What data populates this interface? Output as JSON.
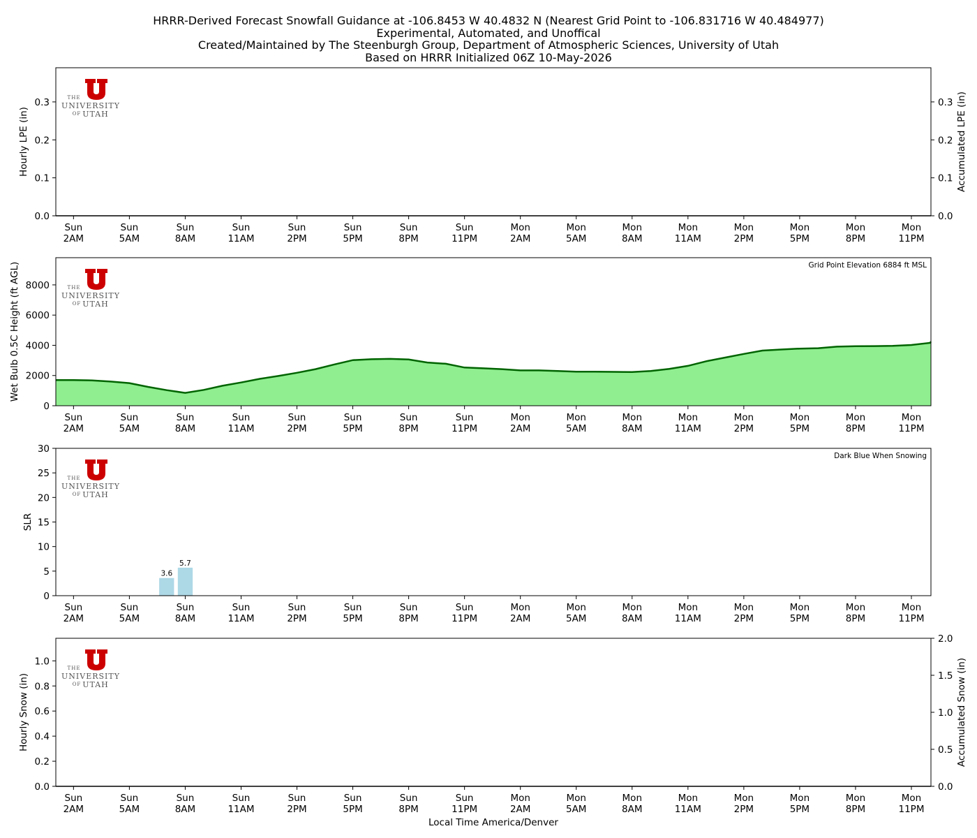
{
  "titles": {
    "line1": "HRRR-Derived Forecast Snowfall Guidance at -106.8453 W 40.4832 N (Nearest Grid Point to -106.831716 W 40.484977)",
    "line2": "Experimental, Automated, and Unoffical",
    "line3": "Created/Maintained by The Steenburgh Group, Department of Atmospheric Sciences, University of Utah",
    "line4": "Based on HRRR Initialized 06Z 10-May-2026"
  },
  "xlabel": "Local Time America/Denver",
  "logo": {
    "the": "THE",
    "university": "UNIVERSITY",
    "of": "OF",
    "utah": "UTAH"
  },
  "colors": {
    "logo_red": "#cc0000",
    "wetbulb_fill": "#90ee90",
    "wetbulb_line": "#006400",
    "slr_bar": "#add8e6"
  },
  "chart_data": [
    {
      "type": "bar",
      "name": "lpe",
      "ylabel": "Hourly LPE (in)",
      "ylabel_right": "Accumulated LPE (in)",
      "ylim": [
        0,
        0.39
      ],
      "yticks": [
        "0.0",
        "0.1",
        "0.2",
        "0.3"
      ],
      "ytick_values": [
        0,
        0.1,
        0.2,
        0.3
      ],
      "ylim_right": [
        0,
        0.39
      ],
      "yticks_right": [
        "0.0",
        "0.1",
        "0.2",
        "0.3"
      ],
      "ytick_values_right": [
        0,
        0.1,
        0.2,
        0.3
      ],
      "x": [],
      "values": []
    },
    {
      "type": "area",
      "name": "wetbulb",
      "ylabel": "Wet Bulb 0.5C Height (ft AGL)",
      "annotation": "Grid Point Elevation 6884 ft MSL",
      "ylim": [
        0,
        9800
      ],
      "yticks": [
        "0",
        "2000",
        "4000",
        "6000",
        "8000"
      ],
      "ytick_values": [
        0,
        2000,
        4000,
        6000,
        8000
      ],
      "x": [
        1,
        2,
        3,
        4,
        5,
        6,
        7,
        8,
        9,
        10,
        11,
        12,
        13,
        14,
        15,
        16,
        17,
        18,
        19,
        20,
        21,
        22,
        23,
        24,
        25,
        26,
        27,
        28,
        29,
        30,
        31,
        32,
        33,
        34,
        35,
        36,
        37,
        38,
        39,
        40,
        41,
        42,
        43,
        44,
        45,
        46,
        47,
        48
      ],
      "values": [
        1700,
        1680,
        1600,
        1500,
        1250,
        1030,
        850,
        1050,
        1320,
        1540,
        1780,
        1970,
        2180,
        2420,
        2730,
        3020,
        3080,
        3100,
        3060,
        2860,
        2780,
        2530,
        2480,
        2420,
        2340,
        2340,
        2300,
        2250,
        2250,
        2240,
        2230,
        2300,
        2440,
        2640,
        2950,
        3190,
        3430,
        3650,
        3720,
        3780,
        3810,
        3910,
        3940,
        3950,
        3960,
        4020,
        4160,
        4240
      ]
    },
    {
      "type": "bar",
      "name": "slr",
      "ylabel": "SLR",
      "annotation": "Dark Blue When Snowing",
      "ylim": [
        0,
        30
      ],
      "yticks": [
        "0",
        "5",
        "10",
        "15",
        "20",
        "25",
        "30"
      ],
      "ytick_values": [
        0,
        5,
        10,
        15,
        20,
        25,
        30
      ],
      "x": [
        6,
        7
      ],
      "values": [
        3.6,
        5.7
      ],
      "labels": [
        "3.6",
        "5.7"
      ]
    },
    {
      "type": "bar",
      "name": "snow",
      "ylabel": "Hourly Snow (in)",
      "ylabel_right": "Accumulated Snow (in)",
      "ylim": [
        0,
        1.18
      ],
      "yticks": [
        "0.0",
        "0.2",
        "0.4",
        "0.6",
        "0.8",
        "1.0"
      ],
      "ytick_values": [
        0,
        0.2,
        0.4,
        0.6,
        0.8,
        1.0
      ],
      "ylim_right": [
        0,
        2.0
      ],
      "yticks_right": [
        "0.0",
        "0.5",
        "1.0",
        "1.5",
        "2.0"
      ],
      "ytick_values_right": [
        0,
        0.5,
        1.0,
        1.5,
        2.0
      ],
      "x": [],
      "values": []
    }
  ],
  "xaxis": {
    "xlim": [
      0.05,
      47.05
    ],
    "tick_hours": [
      1,
      4,
      7,
      10,
      13,
      16,
      19,
      22,
      25,
      28,
      31,
      34,
      37,
      40,
      43,
      46
    ],
    "tick_days": [
      "Sun",
      "Sun",
      "Sun",
      "Sun",
      "Sun",
      "Sun",
      "Sun",
      "Sun",
      "Mon",
      "Mon",
      "Mon",
      "Mon",
      "Mon",
      "Mon",
      "Mon",
      "Mon"
    ],
    "tick_times": [
      "2AM",
      "5AM",
      "8AM",
      "11AM",
      "2PM",
      "5PM",
      "8PM",
      "11PM",
      "2AM",
      "5AM",
      "8AM",
      "11AM",
      "2PM",
      "5PM",
      "8PM",
      "11PM"
    ]
  }
}
